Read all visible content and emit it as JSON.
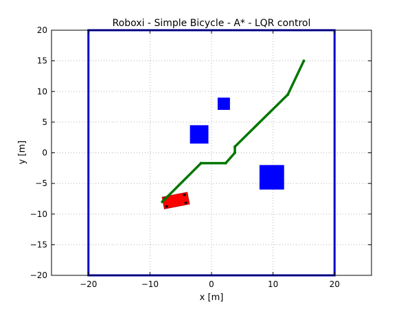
{
  "chart_data": {
    "type": "scatter",
    "title": "Roboxi - Simple Bicycle - A* - LQR control",
    "xlabel": "x [m]",
    "ylabel": "y [m]",
    "xlim": [
      -26,
      26
    ],
    "ylim": [
      -20,
      20
    ],
    "x_ticks": [
      -20,
      -10,
      0,
      10,
      20
    ],
    "y_ticks": [
      -20,
      -15,
      -10,
      -5,
      0,
      5,
      10,
      15,
      20
    ],
    "x_tick_labels": [
      "−20",
      "−10",
      "0",
      "10",
      "20"
    ],
    "y_tick_labels": [
      "−20",
      "−15",
      "−10",
      "−5",
      "0",
      "5",
      "10",
      "15",
      "20"
    ],
    "grid": true,
    "legend": "none",
    "boundary": {
      "x": [
        -20,
        20
      ],
      "y": [
        -20,
        20
      ],
      "color": "#0000cc"
    },
    "obstacles": [
      {
        "center": [
          2,
          8
        ],
        "size": 2,
        "color": "#0000ff"
      },
      {
        "center": [
          -2,
          3
        ],
        "size": 3,
        "color": "#0000ff"
      },
      {
        "center": [
          9.8,
          -4
        ],
        "size": 4,
        "color": "#0000ff"
      }
    ],
    "path": {
      "color": "#007700",
      "x": [
        15,
        12.4,
        3.8,
        3.8,
        2.3,
        -1.7,
        -8
      ],
      "y": [
        15,
        9.5,
        1,
        0,
        -1.7,
        -1.7,
        -8
      ]
    },
    "vehicle": {
      "center": [
        -5.8,
        -7.8
      ],
      "length": 4.2,
      "width": 2,
      "heading_deg": 11,
      "color": "#ff0000"
    }
  }
}
